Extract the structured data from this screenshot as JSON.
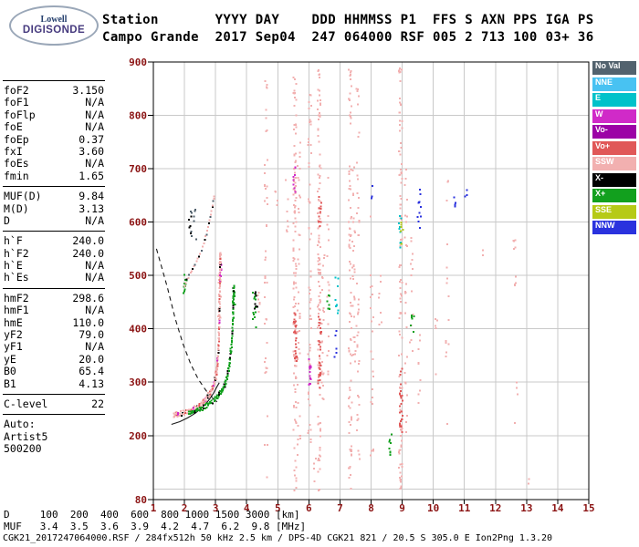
{
  "header": {
    "logo": {
      "top": "Lowell",
      "bottom": "DIGISONDE"
    },
    "line1": "Station       YYYY DAY    DDD HHMMSS P1  FFS S AXN PPS IGA PS",
    "line2": "Campo Grande  2017 Sep04  247 064000 RSF 005 2 713 100 03+ 36",
    "fields": {
      "station": "Campo Grande",
      "yyyy": "2017",
      "day": "Sep04",
      "ddd": "247",
      "hhmmss": "064000",
      "p1": "RSF",
      "ffs": "005",
      "s": "2",
      "axn": "713",
      "pps": "100",
      "iga": "03+",
      "ps": "36"
    }
  },
  "params": {
    "groups": [
      {
        "rows": [
          [
            "foF2",
            "3.150"
          ],
          [
            "foF1",
            "N/A"
          ],
          [
            "foFlp",
            "N/A"
          ],
          [
            "foE",
            "N/A"
          ],
          [
            "foEp",
            "0.37"
          ],
          [
            "fxI",
            "3.60"
          ],
          [
            "foEs",
            "N/A"
          ],
          [
            "fmin",
            "1.65"
          ]
        ]
      },
      {
        "rows": [
          [
            "MUF(D)",
            "9.84"
          ],
          [
            "M(D)",
            "3.13"
          ],
          [
            "D",
            "N/A"
          ]
        ]
      },
      {
        "rows": [
          [
            "h`F",
            "240.0"
          ],
          [
            "h`F2",
            "240.0"
          ],
          [
            "h`E",
            "N/A"
          ],
          [
            "h`Es",
            "N/A"
          ]
        ]
      },
      {
        "rows": [
          [
            "hmF2",
            "298.6"
          ],
          [
            "hmF1",
            "N/A"
          ],
          [
            "hmE",
            "110.0"
          ],
          [
            "yF2",
            "79.0"
          ],
          [
            "yF1",
            "N/A"
          ],
          [
            "yE",
            "20.0"
          ],
          [
            "B0",
            "65.4"
          ],
          [
            "B1",
            "4.13"
          ]
        ]
      },
      {
        "rows": [
          [
            "C-level",
            "22"
          ]
        ]
      },
      {
        "rows": [
          [
            "Auto:",
            ""
          ],
          [
            "Artist5",
            ""
          ],
          [
            "500200",
            ""
          ]
        ]
      }
    ]
  },
  "legend": {
    "items": [
      {
        "label": "No Val",
        "key": "no_val"
      },
      {
        "label": "NNE",
        "key": "nne"
      },
      {
        "label": "E",
        "key": "e"
      },
      {
        "label": "W",
        "key": "w"
      },
      {
        "label": "Vo-",
        "key": "vo_minus"
      },
      {
        "label": "Vo+",
        "key": "vo_plus"
      },
      {
        "label": "SSW",
        "key": "ssw"
      },
      {
        "label": "X-",
        "key": "x_minus"
      },
      {
        "label": "X+",
        "key": "x_plus"
      },
      {
        "label": "SSE",
        "key": "sse"
      },
      {
        "label": "NNW",
        "key": "nnw"
      }
    ]
  },
  "chart_data": {
    "type": "scatter",
    "x_axis": {
      "unit": "MHz",
      "lim": [
        1,
        15
      ],
      "ticks": [
        1,
        2,
        3,
        4,
        5,
        6,
        7,
        8,
        9,
        10,
        11,
        12,
        13,
        14,
        15
      ]
    },
    "y_axis": {
      "unit": "km",
      "lim": [
        80,
        900
      ],
      "ticks": [
        900,
        800,
        700,
        600,
        500,
        400,
        300,
        200,
        80
      ]
    },
    "grid": true,
    "grid_color": "#c9c9c9",
    "tick_label_color": "#8b1313",
    "frame_color": "#000000",
    "key_values": {
      "foF2_MHz": 3.15,
      "fxI_MHz": 3.6,
      "fmin_MHz": 1.65,
      "hpF_km": 240.0,
      "hmF2_km": 298.6,
      "MUF_D": 9.84
    },
    "palette": {
      "no_val": "#52626e",
      "nne": "#48c2f2",
      "e": "#00c2ca",
      "w": "#d02ac8",
      "vo_minus": "#9c02a6",
      "vo_plus": "#e05858",
      "ssw": "#f2b0b0",
      "x_minus": "#000000",
      "x_plus": "#12a01e",
      "sse": "#b6ca16",
      "nnw": "#2a32de"
    },
    "traces": [
      {
        "name": "F-layer-o-trace",
        "steps": 85,
        "rows": 2,
        "row_dh": 5,
        "colors": [
          "ssw",
          "ssw",
          "ssw",
          "vo_plus",
          "ssw",
          "w",
          "ssw",
          "ssw",
          "x_minus",
          "ssw",
          "ssw",
          "vo_plus"
        ],
        "anchors": [
          [
            1.65,
            238
          ],
          [
            1.8,
            240
          ],
          [
            2.0,
            243
          ],
          [
            2.2,
            247
          ],
          [
            2.4,
            253
          ],
          [
            2.55,
            260
          ],
          [
            2.7,
            269
          ],
          [
            2.82,
            279
          ],
          [
            2.92,
            292
          ],
          [
            3.0,
            308
          ],
          [
            3.05,
            326
          ],
          [
            3.08,
            348
          ],
          [
            3.105,
            375
          ],
          [
            3.12,
            408
          ],
          [
            3.13,
            445
          ],
          [
            3.14,
            482
          ],
          [
            3.148,
            515
          ],
          [
            3.152,
            540
          ]
        ]
      },
      {
        "name": "F-layer-x-trace",
        "steps": 60,
        "rows": 2,
        "row_dh": 5,
        "colors": [
          "x_plus",
          "x_plus",
          "x_plus",
          "x_plus",
          "x_minus",
          "x_plus"
        ],
        "anchors": [
          [
            2.15,
            242
          ],
          [
            2.35,
            246
          ],
          [
            2.55,
            251
          ],
          [
            2.75,
            258
          ],
          [
            2.95,
            266
          ],
          [
            3.1,
            275
          ],
          [
            3.22,
            286
          ],
          [
            3.32,
            299
          ],
          [
            3.4,
            316
          ],
          [
            3.46,
            338
          ],
          [
            3.5,
            362
          ],
          [
            3.54,
            395
          ],
          [
            3.565,
            430
          ],
          [
            3.578,
            462
          ],
          [
            3.585,
            478
          ]
        ]
      },
      {
        "name": "second-hop-trace",
        "steps": 32,
        "rows": 1,
        "row_dh": 4,
        "colors": [
          "ssw",
          "ssw",
          "x_minus",
          "ssw",
          "no_val"
        ],
        "anchors": [
          [
            2.0,
            482
          ],
          [
            2.15,
            500
          ],
          [
            2.3,
            516
          ],
          [
            2.45,
            533
          ],
          [
            2.6,
            556
          ],
          [
            2.72,
            580
          ],
          [
            2.82,
            605
          ],
          [
            2.9,
            628
          ],
          [
            2.96,
            648
          ]
        ]
      }
    ],
    "columns": [
      {
        "f": 2.02,
        "h1": 465,
        "h2": 502,
        "n": 10,
        "color": "x_plus"
      },
      {
        "f": 2.3,
        "h1": 565,
        "h2": 625,
        "n": 9,
        "color": "no_val",
        "jx": 0.12
      },
      {
        "f": 2.22,
        "h1": 578,
        "h2": 612,
        "n": 5,
        "color": "x_minus",
        "jx": 0.1
      },
      {
        "f": 3.13,
        "h1": 420,
        "h2": 545,
        "n": 26,
        "color": "ssw",
        "jx": 0.05
      },
      {
        "f": 3.17,
        "h1": 470,
        "h2": 520,
        "n": 8,
        "color": "w",
        "jx": 0.04
      },
      {
        "f": 3.58,
        "h1": 415,
        "h2": 478,
        "n": 12,
        "color": "x_plus",
        "jx": 0.05
      },
      {
        "f": 4.25,
        "h1": 398,
        "h2": 478,
        "n": 12,
        "color": "x_plus",
        "jx": 0.06
      },
      {
        "f": 4.3,
        "h1": 420,
        "h2": 470,
        "n": 7,
        "color": "x_minus",
        "jx": 0.08
      },
      {
        "f": 4.38,
        "h1": 425,
        "h2": 468,
        "n": 6,
        "color": "ssw",
        "jx": 0.05
      },
      {
        "f": 4.62,
        "h1": 120,
        "h2": 880,
        "n": 42,
        "color": "ssw"
      },
      {
        "f": 4.95,
        "h1": 630,
        "h2": 668,
        "n": 4,
        "color": "ssw"
      },
      {
        "f": 5.3,
        "h1": 575,
        "h2": 680,
        "n": 7,
        "color": "ssw"
      },
      {
        "f": 5.55,
        "h1": 90,
        "h2": 890,
        "n": 115,
        "color": "ssw"
      },
      {
        "f": 5.57,
        "h1": 330,
        "h2": 432,
        "n": 26,
        "color": "vo_plus"
      },
      {
        "f": 5.54,
        "h1": 655,
        "h2": 705,
        "n": 8,
        "color": "w"
      },
      {
        "f": 5.68,
        "h1": 150,
        "h2": 750,
        "n": 38,
        "color": "ssw"
      },
      {
        "f": 6.03,
        "h1": 180,
        "h2": 870,
        "n": 55,
        "color": "ssw"
      },
      {
        "f": 6.05,
        "h1": 285,
        "h2": 345,
        "n": 14,
        "color": "w"
      },
      {
        "f": 6.2,
        "h1": 110,
        "h2": 160,
        "n": 4,
        "color": "ssw"
      },
      {
        "f": 6.33,
        "h1": 95,
        "h2": 890,
        "n": 110,
        "color": "ssw"
      },
      {
        "f": 6.35,
        "h1": 285,
        "h2": 430,
        "n": 34,
        "color": "vo_plus"
      },
      {
        "f": 6.36,
        "h1": 592,
        "h2": 648,
        "n": 12,
        "color": "vo_plus"
      },
      {
        "f": 6.46,
        "h1": 250,
        "h2": 560,
        "n": 22,
        "color": "ssw"
      },
      {
        "f": 6.62,
        "h1": 300,
        "h2": 710,
        "n": 16,
        "color": "ssw"
      },
      {
        "f": 6.64,
        "h1": 428,
        "h2": 482,
        "n": 7,
        "color": "x_plus"
      },
      {
        "f": 6.9,
        "h1": 420,
        "h2": 500,
        "n": 9,
        "color": "e"
      },
      {
        "f": 6.88,
        "h1": 340,
        "h2": 400,
        "n": 5,
        "color": "nnw"
      },
      {
        "f": 7.33,
        "h1": 100,
        "h2": 890,
        "n": 88,
        "color": "ssw"
      },
      {
        "f": 7.45,
        "h1": 280,
        "h2": 720,
        "n": 30,
        "color": "ssw"
      },
      {
        "f": 7.58,
        "h1": 150,
        "h2": 850,
        "n": 42,
        "color": "ssw"
      },
      {
        "f": 8.03,
        "h1": 150,
        "h2": 620,
        "n": 22,
        "color": "ssw"
      },
      {
        "f": 8.06,
        "h1": 640,
        "h2": 680,
        "n": 3,
        "color": "nnw"
      },
      {
        "f": 8.3,
        "h1": 400,
        "h2": 520,
        "n": 7,
        "color": "ssw"
      },
      {
        "f": 8.62,
        "h1": 162,
        "h2": 206,
        "n": 8,
        "color": "x_plus"
      },
      {
        "f": 8.95,
        "h1": 95,
        "h2": 890,
        "n": 100,
        "color": "ssw"
      },
      {
        "f": 8.97,
        "h1": 200,
        "h2": 332,
        "n": 26,
        "color": "vo_plus"
      },
      {
        "f": 8.93,
        "h1": 548,
        "h2": 612,
        "n": 9,
        "color": "e"
      },
      {
        "f": 9.0,
        "h1": 552,
        "h2": 602,
        "n": 7,
        "color": "sse"
      },
      {
        "f": 9.12,
        "h1": 200,
        "h2": 700,
        "n": 26,
        "color": "ssw"
      },
      {
        "f": 9.3,
        "h1": 300,
        "h2": 620,
        "n": 13,
        "color": "ssw"
      },
      {
        "f": 9.33,
        "h1": 378,
        "h2": 432,
        "n": 6,
        "color": "x_plus"
      },
      {
        "f": 9.55,
        "h1": 585,
        "h2": 665,
        "n": 11,
        "color": "nnw"
      },
      {
        "f": 9.56,
        "h1": 200,
        "h2": 420,
        "n": 9,
        "color": "ssw"
      },
      {
        "f": 10.1,
        "h1": 300,
        "h2": 500,
        "n": 5,
        "color": "ssw"
      },
      {
        "f": 10.45,
        "h1": 200,
        "h2": 700,
        "n": 15,
        "color": "ssw"
      },
      {
        "f": 10.72,
        "h1": 612,
        "h2": 648,
        "n": 4,
        "color": "nnw"
      },
      {
        "f": 11.05,
        "h1": 638,
        "h2": 668,
        "n": 3,
        "color": "nnw"
      },
      {
        "f": 11.6,
        "h1": 535,
        "h2": 565,
        "n": 2,
        "color": "ssw"
      },
      {
        "f": 12.62,
        "h1": 478,
        "h2": 568,
        "n": 9,
        "color": "ssw"
      },
      {
        "f": 12.66,
        "h1": 205,
        "h2": 300,
        "n": 4,
        "color": "ssw"
      },
      {
        "f": 13.05,
        "h1": 90,
        "h2": 120,
        "n": 2,
        "color": "ssw"
      }
    ],
    "curves": [
      {
        "name": "model-profile-dashed",
        "style": "dashed",
        "points": [
          [
            1.1,
            550
          ],
          [
            1.45,
            478
          ],
          [
            1.7,
            420
          ],
          [
            1.95,
            372
          ],
          [
            2.2,
            334
          ],
          [
            2.45,
            305
          ],
          [
            2.7,
            284
          ],
          [
            2.9,
            271
          ],
          [
            3.05,
            263
          ]
        ]
      },
      {
        "name": "true-height-profile-solid",
        "style": "solid",
        "points": [
          [
            1.58,
            221
          ],
          [
            1.85,
            226
          ],
          [
            2.1,
            233
          ],
          [
            2.35,
            242
          ],
          [
            2.58,
            253
          ],
          [
            2.78,
            266
          ],
          [
            2.93,
            279
          ],
          [
            3.04,
            291
          ],
          [
            3.12,
            299
          ]
        ]
      }
    ]
  },
  "bottom_table": {
    "rows": [
      {
        "label": "D",
        "values": [
          "100",
          "200",
          "400",
          "600",
          "800",
          "1000",
          "1500",
          "3000"
        ],
        "unit": "[km]"
      },
      {
        "label": "MUF",
        "values": [
          "3.4",
          "3.5",
          "3.6",
          "3.9",
          "4.2",
          "4.7",
          "6.2",
          "9.8"
        ],
        "unit": "[MHz]"
      }
    ]
  },
  "footer": "CGK21_2017247064000.RSF / 284fx512h 50 kHz 2.5 km / DPS-4D CGK21 821 / 20.5 S 305.0 E Ion2Png 1.3.20"
}
